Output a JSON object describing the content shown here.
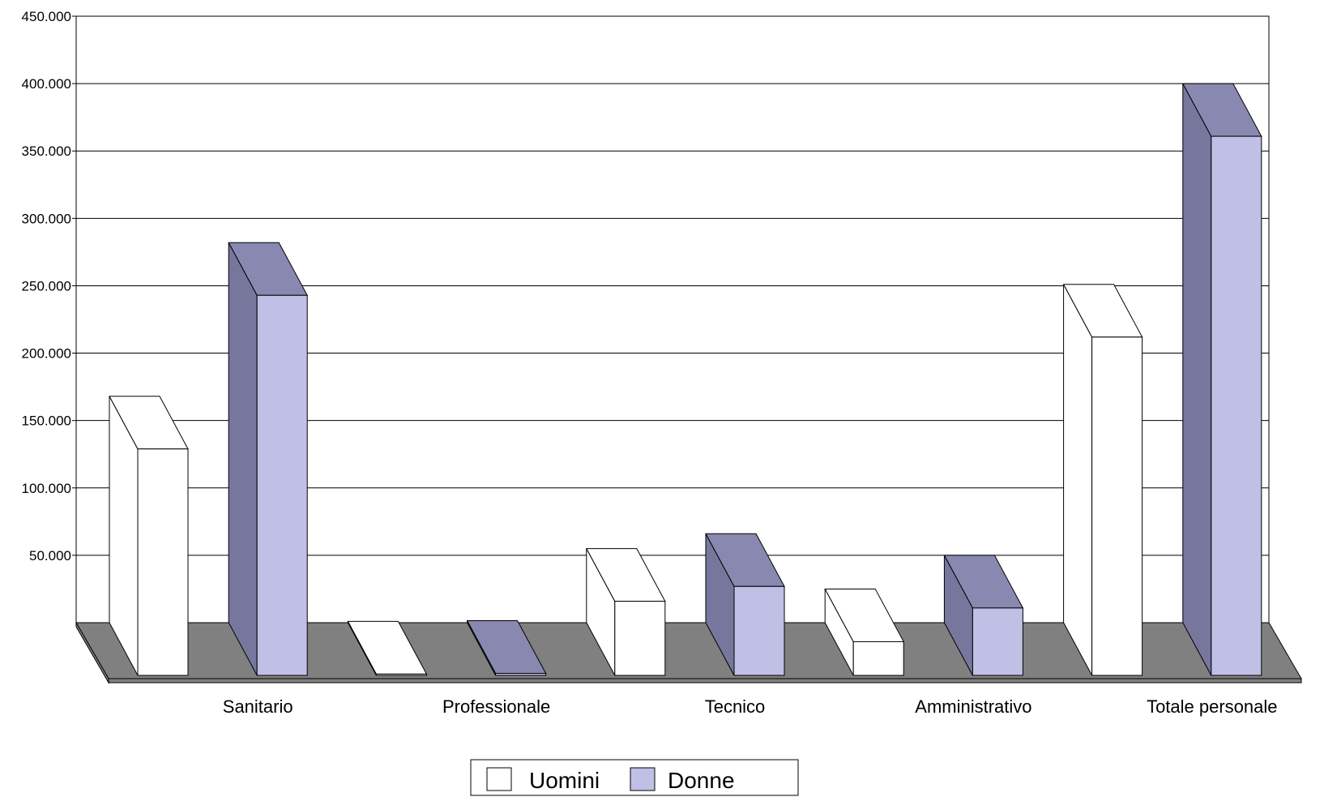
{
  "chart_data": {
    "type": "bar",
    "title": "",
    "xlabel": "",
    "ylabel": "",
    "ylim": [
      0,
      450000
    ],
    "y_ticks": [
      "50.000",
      "100.000",
      "150.000",
      "200.000",
      "250.000",
      "300.000",
      "350.000",
      "400.000",
      "450.000"
    ],
    "y_tick_values": [
      50000,
      100000,
      150000,
      200000,
      250000,
      300000,
      350000,
      400000,
      450000
    ],
    "categories": [
      "Sanitario",
      "Professionale",
      "Tecnico",
      "Amministrativo",
      "Totale personale"
    ],
    "series": [
      {
        "name": "Uomini",
        "values": [
          168000,
          1000,
          55000,
          25000,
          251000
        ],
        "color": "#ffffff",
        "side_color": "#ffffff",
        "top_color": "#ffffff"
      },
      {
        "name": "Donne",
        "values": [
          282000,
          1500,
          66000,
          50000,
          400000
        ],
        "color": "#c0c0e6",
        "side_color": "#77779e",
        "top_color": "#8888b0"
      }
    ],
    "floor_color": "#808080",
    "grid": true,
    "legend": "bottom-center",
    "style": "3d-bar"
  }
}
